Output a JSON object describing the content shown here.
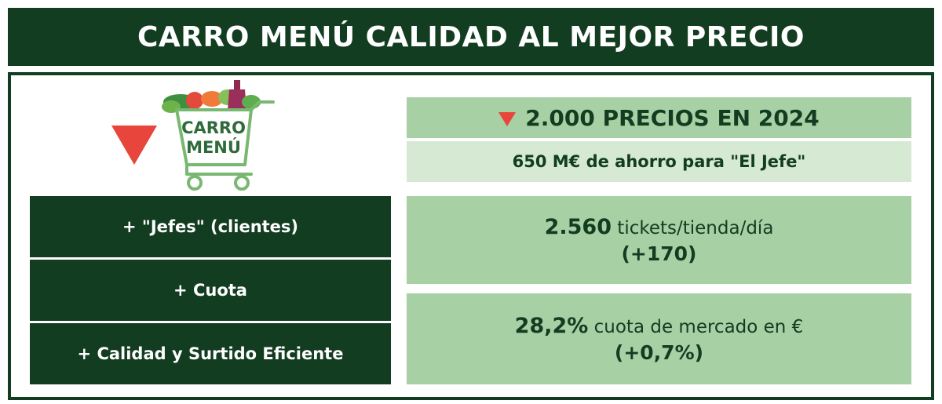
{
  "title": "CARRO MENÚ CALIDAD AL MEJOR PRECIO",
  "logo": {
    "line1": "CARRO",
    "line2": "MENÚ",
    "icon": "shopping-cart-icon"
  },
  "colors": {
    "dark_green": "#123d21",
    "mid_green": "#a7d0a5",
    "light_green": "#d5e9d3",
    "red": "#e8453c"
  },
  "left_boxes": [
    {
      "label": "+ \"Jefes\" (clientes)"
    },
    {
      "label": "+ Cuota"
    },
    {
      "label": "+ Calidad y Surtido Eficiente"
    }
  ],
  "right": {
    "headline": "2.000 PRECIOS EN 2024",
    "subline": "650 M€ de ahorro para \"El Jefe\"",
    "tickets": {
      "value": "2.560",
      "unit": "tickets/tienda/día",
      "delta": "(+170)"
    },
    "share": {
      "value": "28,2%",
      "unit": "cuota de mercado en €",
      "delta": "(+0,7%)"
    }
  }
}
